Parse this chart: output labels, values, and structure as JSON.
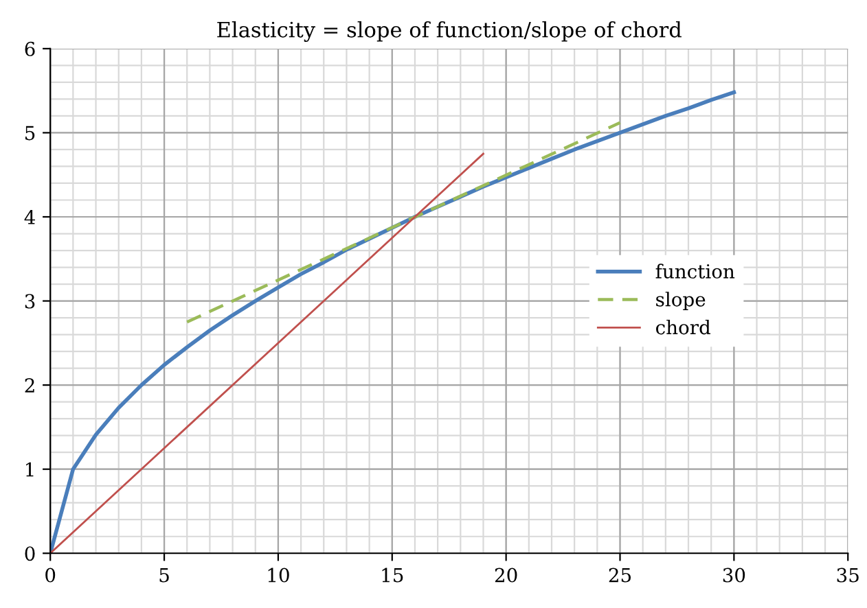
{
  "chart_data": {
    "type": "line",
    "title": "Elasticity = slope of function/slope of chord",
    "xlim": [
      0,
      35
    ],
    "ylim": [
      0,
      6
    ],
    "xticks": [
      0,
      5,
      10,
      15,
      20,
      25,
      30,
      35
    ],
    "yticks": [
      0,
      1,
      2,
      3,
      4,
      5,
      6
    ],
    "grid": true,
    "legend": "right",
    "line_style": "solid",
    "marker": "none",
    "series": [
      {
        "name": "function",
        "color": "#4a7ebb",
        "x": [
          0,
          1,
          2,
          3,
          4,
          5,
          6,
          7,
          8,
          9,
          10,
          11,
          12,
          13,
          14,
          15,
          16,
          17,
          18,
          19,
          20,
          21,
          22,
          23,
          24,
          25,
          26,
          27,
          28,
          29,
          30
        ],
        "values": [
          0,
          1,
          1.41,
          1.73,
          2,
          2.24,
          2.45,
          2.65,
          2.83,
          3,
          3.16,
          3.32,
          3.46,
          3.61,
          3.74,
          3.87,
          4,
          4.12,
          4.24,
          4.36,
          4.47,
          4.58,
          4.69,
          4.8,
          4.9,
          5,
          5.1,
          5.2,
          5.29,
          5.39,
          5.48
        ]
      },
      {
        "name": "slope",
        "color": "#9bbb59",
        "line_style": "dashed",
        "x": [
          6,
          25
        ],
        "values": [
          2.75,
          5.12
        ]
      },
      {
        "name": "chord",
        "color": "#c0504d",
        "x": [
          0,
          19
        ],
        "values": [
          0,
          4.75
        ]
      }
    ]
  }
}
